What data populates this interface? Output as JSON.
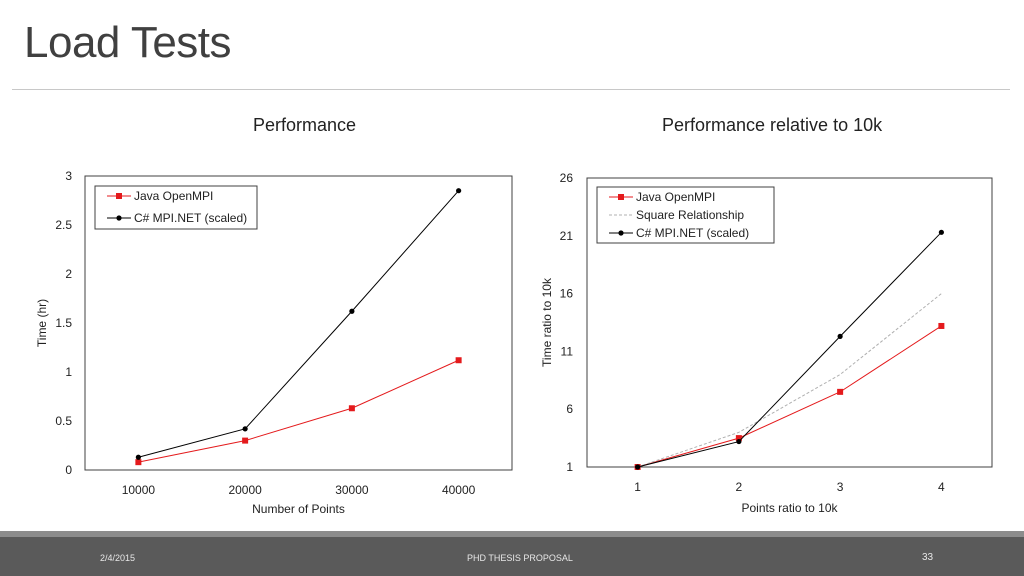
{
  "slide": {
    "title": "Load Tests",
    "footer_date": "2/4/2015",
    "footer_center": "PHD THESIS PROPOSAL",
    "page_number": "33"
  },
  "colors": {
    "java": "#e41a1c",
    "csharp": "#000000",
    "square": "#b0b0b0"
  },
  "chart_data": [
    {
      "type": "line",
      "title": "Performance",
      "xlabel": "Number of Points",
      "ylabel": "Time (hr)",
      "x": [
        10000,
        20000,
        30000,
        40000
      ],
      "x_tick_labels": [
        "10000",
        "20000",
        "30000",
        "40000"
      ],
      "ylim": [
        0,
        3
      ],
      "y_ticks": [
        0,
        0.5,
        1,
        1.5,
        2,
        2.5,
        3
      ],
      "y_tick_labels": [
        "0",
        "0.5",
        "1",
        "1.5",
        "2",
        "2.5",
        "3"
      ],
      "legend": "top-left",
      "series": [
        {
          "name": "Java OpenMPI",
          "marker": "square",
          "values": [
            0.08,
            0.3,
            0.63,
            1.12
          ]
        },
        {
          "name": "C# MPI.NET (scaled)",
          "marker": "circle",
          "values": [
            0.13,
            0.42,
            1.62,
            2.85
          ]
        }
      ]
    },
    {
      "type": "line",
      "title": "Performance relative to 10k",
      "xlabel": "Points ratio to 10k",
      "ylabel": "Time ratio to 10k",
      "x": [
        1,
        2,
        3,
        4
      ],
      "x_tick_labels": [
        "1",
        "2",
        "3",
        "4"
      ],
      "ylim": [
        1,
        26
      ],
      "y_ticks": [
        1,
        6,
        11,
        16,
        21,
        26
      ],
      "y_tick_labels": [
        "1",
        "6",
        "11",
        "16",
        "21",
        "26"
      ],
      "legend": "top-left",
      "series": [
        {
          "name": "Java OpenMPI",
          "marker": "square",
          "values": [
            1,
            3.5,
            7.5,
            13.2
          ]
        },
        {
          "name": "Square Relationship",
          "marker": "none",
          "dashed": true,
          "values": [
            1,
            4,
            9,
            16
          ]
        },
        {
          "name": "C# MPI.NET (scaled)",
          "marker": "circle",
          "values": [
            1,
            3.2,
            12.3,
            21.3
          ]
        }
      ]
    }
  ]
}
